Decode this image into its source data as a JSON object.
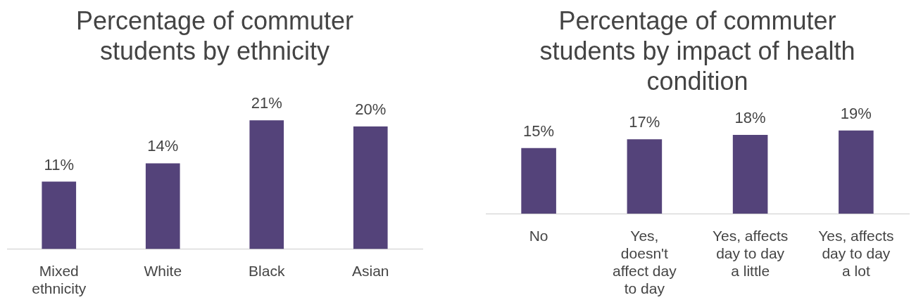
{
  "chart_data": [
    {
      "type": "bar",
      "title": "Percentage of commuter students by ethnicity",
      "categories": [
        "Mixed ethnicity",
        "White",
        "Black",
        "Asian"
      ],
      "values": [
        11,
        14,
        21,
        20
      ],
      "value_labels": [
        "11%",
        "14%",
        "21%",
        "20%"
      ],
      "color": "#54437a",
      "grid": false,
      "legend": false,
      "tick_labels": "x"
    },
    {
      "type": "bar",
      "title": "Percentage of commuter students by impact of health condition",
      "categories": [
        "No",
        "Yes, doesn't affect day to day",
        "Yes, affects day to day a little",
        "Yes, affects day to day a lot"
      ],
      "values": [
        15,
        17,
        18,
        19
      ],
      "value_labels": [
        "15%",
        "17%",
        "18%",
        "19%"
      ],
      "color": "#54437a",
      "grid": false,
      "legend": false,
      "tick_labels": "x"
    }
  ]
}
